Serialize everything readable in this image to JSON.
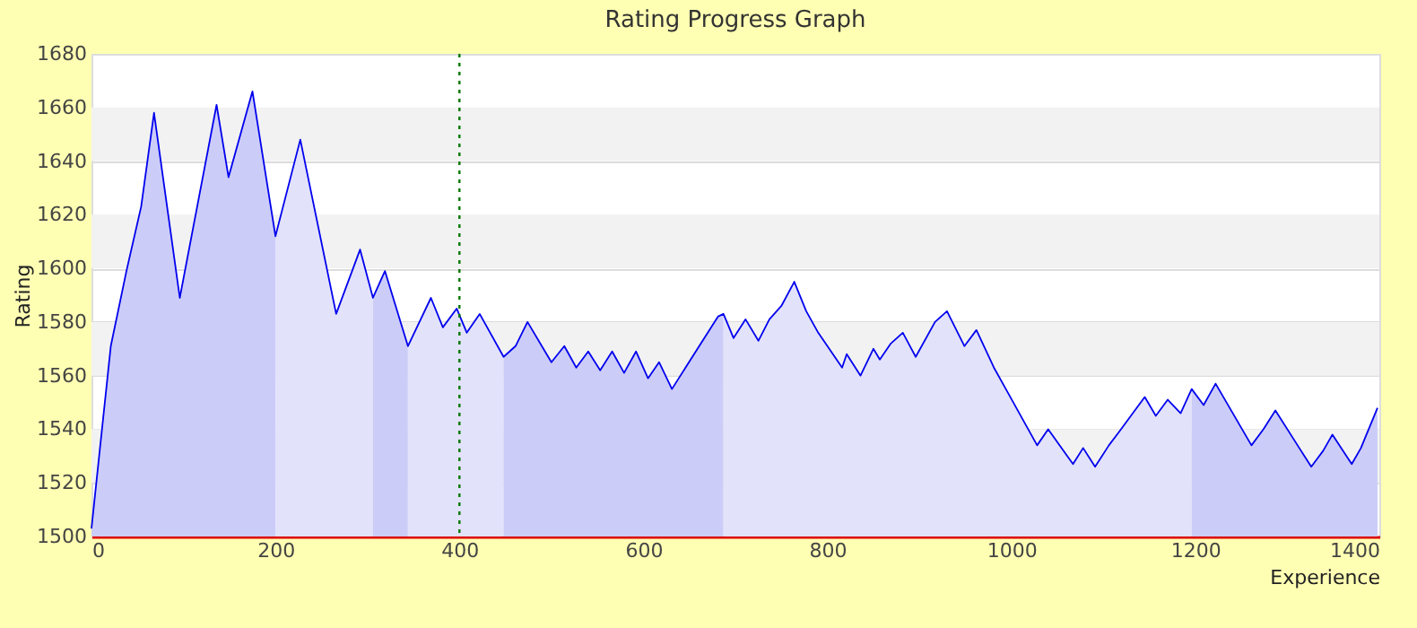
{
  "chart_data": {
    "type": "line",
    "title": "Rating Progress Graph",
    "xlabel": "Experience",
    "ylabel": "Rating",
    "xlim": [
      0,
      1400
    ],
    "xticks": [
      0,
      200,
      400,
      600,
      800,
      1000,
      1200,
      1400
    ],
    "ylim": [
      1500,
      1680
    ],
    "yticks": [
      1500,
      1520,
      1540,
      1560,
      1580,
      1600,
      1620,
      1640,
      1660,
      1680
    ],
    "grid": "y",
    "marker": "none",
    "line_style": "solid",
    "series": [
      {
        "type": "area",
        "color": "#ccccf8",
        "x": [
          0,
          21,
          38,
          54,
          68,
          96,
          136,
          149,
          175,
          200
        ],
        "values": [
          1503,
          1571,
          1599,
          1623,
          1658,
          1589,
          1661,
          1634,
          1666,
          1612
        ]
      },
      {
        "type": "area",
        "color": "#e2e2fb",
        "x": [
          200,
          227,
          266,
          292,
          306
        ],
        "values": [
          1612,
          1648,
          1583,
          1607,
          1589
        ]
      },
      {
        "type": "area",
        "color": "#ccccf8",
        "x": [
          306,
          319,
          344
        ],
        "values": [
          1589,
          1599,
          1571
        ]
      },
      {
        "type": "area",
        "color": "#e2e2fb",
        "x": [
          344,
          369,
          382,
          397,
          408,
          422,
          448
        ],
        "values": [
          1571,
          1589,
          1578,
          1585,
          1576,
          1583,
          1567
        ]
      },
      {
        "type": "area",
        "color": "#ccccf8",
        "x": [
          448,
          461,
          474,
          500,
          514,
          527,
          540,
          553,
          566,
          579,
          592,
          605,
          617,
          631,
          681,
          687
        ],
        "values": [
          1567,
          1571,
          1580,
          1565,
          1571,
          1563,
          1569,
          1562,
          1569,
          1561,
          1569,
          1559,
          1565,
          1555,
          1582,
          1583
        ]
      },
      {
        "type": "area",
        "color": "#e2e2fb",
        "x": [
          687,
          698,
          711,
          725,
          737,
          750,
          764,
          777,
          790,
          816,
          821,
          836,
          850,
          857,
          869,
          882,
          896,
          917,
          930,
          949,
          962,
          981,
          994,
          1028,
          1040,
          1067,
          1078,
          1091,
          1106,
          1117,
          1145,
          1157,
          1170,
          1184,
          1196
        ],
        "values": [
          1583,
          1574,
          1581,
          1573,
          1581,
          1586,
          1595,
          1584,
          1576,
          1563,
          1568,
          1560,
          1570,
          1566,
          1572,
          1576,
          1567,
          1580,
          1584,
          1571,
          1577,
          1563,
          1555,
          1534,
          1540,
          1527,
          1533,
          1526,
          1534,
          1539,
          1552,
          1545,
          1551,
          1546,
          1555
        ]
      },
      {
        "type": "area",
        "color": "#ccccf8",
        "x": [
          1196,
          1209,
          1222,
          1261,
          1274,
          1287,
          1313,
          1326,
          1339,
          1349,
          1370,
          1380,
          1398
        ],
        "values": [
          1555,
          1549,
          1557,
          1534,
          1540,
          1547,
          1533,
          1526,
          1532,
          1538,
          1527,
          1533,
          1548
        ]
      },
      {
        "color": "#0000ee",
        "x": [
          0,
          21,
          38,
          54,
          68,
          96,
          136,
          149,
          175,
          200,
          227,
          266,
          292,
          306,
          319,
          344,
          369,
          382,
          397,
          408,
          422,
          448,
          461,
          474,
          500,
          514,
          527,
          540,
          553,
          566,
          579,
          592,
          605,
          617,
          631,
          681,
          687,
          698,
          711,
          725,
          737,
          750,
          764,
          777,
          790,
          816,
          821,
          836,
          850,
          857,
          869,
          882,
          896,
          917,
          930,
          949,
          962,
          981,
          994,
          1028,
          1040,
          1067,
          1078,
          1091,
          1106,
          1117,
          1145,
          1157,
          1170,
          1184,
          1196,
          1209,
          1222,
          1261,
          1274,
          1287,
          1313,
          1326,
          1339,
          1349,
          1370,
          1380,
          1398
        ],
        "values": [
          1503,
          1571,
          1599,
          1623,
          1658,
          1589,
          1661,
          1634,
          1666,
          1612,
          1648,
          1583,
          1607,
          1589,
          1599,
          1571,
          1589,
          1578,
          1585,
          1576,
          1583,
          1567,
          1571,
          1580,
          1565,
          1571,
          1563,
          1569,
          1562,
          1569,
          1561,
          1569,
          1559,
          1565,
          1555,
          1582,
          1583,
          1574,
          1581,
          1573,
          1581,
          1586,
          1595,
          1584,
          1576,
          1563,
          1568,
          1560,
          1570,
          1566,
          1572,
          1576,
          1567,
          1580,
          1584,
          1571,
          1577,
          1563,
          1555,
          1534,
          1540,
          1527,
          1533,
          1526,
          1534,
          1539,
          1552,
          1545,
          1551,
          1546,
          1555,
          1549,
          1557,
          1534,
          1540,
          1547,
          1533,
          1526,
          1532,
          1538,
          1527,
          1533,
          1548
        ]
      }
    ],
    "ref_lines": [
      {
        "axis": "x",
        "value": 400,
        "color": "#007700",
        "line_style": "dotted"
      }
    ]
  }
}
